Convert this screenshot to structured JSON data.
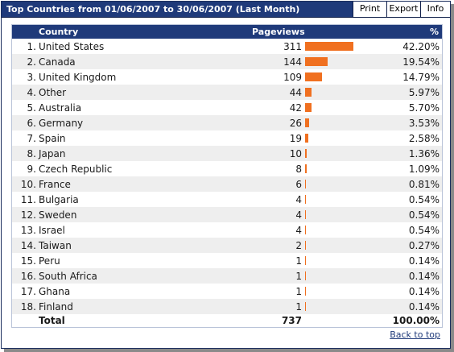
{
  "window": {
    "title": "Top Countries from 01/06/2007 to 30/06/2007 (Last Month)",
    "buttons": [
      "Print",
      "Export",
      "Info"
    ]
  },
  "table": {
    "headers": {
      "country": "Country",
      "pageviews": "Pageviews",
      "percent": "%"
    },
    "bar_color": "#f07020",
    "header_color": "#1f3a7a",
    "rows": [
      {
        "rank": "1.",
        "country": "United States",
        "pageviews": "311",
        "percent": "42.20%",
        "value": 311
      },
      {
        "rank": "2.",
        "country": "Canada",
        "pageviews": "144",
        "percent": "19.54%",
        "value": 144
      },
      {
        "rank": "3.",
        "country": "United Kingdom",
        "pageviews": "109",
        "percent": "14.79%",
        "value": 109
      },
      {
        "rank": "4.",
        "country": "Other",
        "pageviews": "44",
        "percent": "5.97%",
        "value": 44
      },
      {
        "rank": "5.",
        "country": "Australia",
        "pageviews": "42",
        "percent": "5.70%",
        "value": 42
      },
      {
        "rank": "6.",
        "country": "Germany",
        "pageviews": "26",
        "percent": "3.53%",
        "value": 26
      },
      {
        "rank": "7.",
        "country": "Spain",
        "pageviews": "19",
        "percent": "2.58%",
        "value": 19
      },
      {
        "rank": "8.",
        "country": "Japan",
        "pageviews": "10",
        "percent": "1.36%",
        "value": 10
      },
      {
        "rank": "9.",
        "country": "Czech Republic",
        "pageviews": "8",
        "percent": "1.09%",
        "value": 8
      },
      {
        "rank": "10.",
        "country": "France",
        "pageviews": "6",
        "percent": "0.81%",
        "value": 6
      },
      {
        "rank": "11.",
        "country": "Bulgaria",
        "pageviews": "4",
        "percent": "0.54%",
        "value": 4
      },
      {
        "rank": "12.",
        "country": "Sweden",
        "pageviews": "4",
        "percent": "0.54%",
        "value": 4
      },
      {
        "rank": "13.",
        "country": "Israel",
        "pageviews": "4",
        "percent": "0.54%",
        "value": 4
      },
      {
        "rank": "14.",
        "country": "Taiwan",
        "pageviews": "2",
        "percent": "0.27%",
        "value": 2
      },
      {
        "rank": "15.",
        "country": "Peru",
        "pageviews": "1",
        "percent": "0.14%",
        "value": 1
      },
      {
        "rank": "16.",
        "country": "South Africa",
        "pageviews": "1",
        "percent": "0.14%",
        "value": 1
      },
      {
        "rank": "17.",
        "country": "Ghana",
        "pageviews": "1",
        "percent": "0.14%",
        "value": 1
      },
      {
        "rank": "18.",
        "country": "Finland",
        "pageviews": "1",
        "percent": "0.14%",
        "value": 1
      }
    ],
    "total": {
      "label": "Total",
      "pageviews": "737",
      "percent": "100.00%"
    }
  },
  "footer": {
    "back_to_top": "Back to top"
  }
}
